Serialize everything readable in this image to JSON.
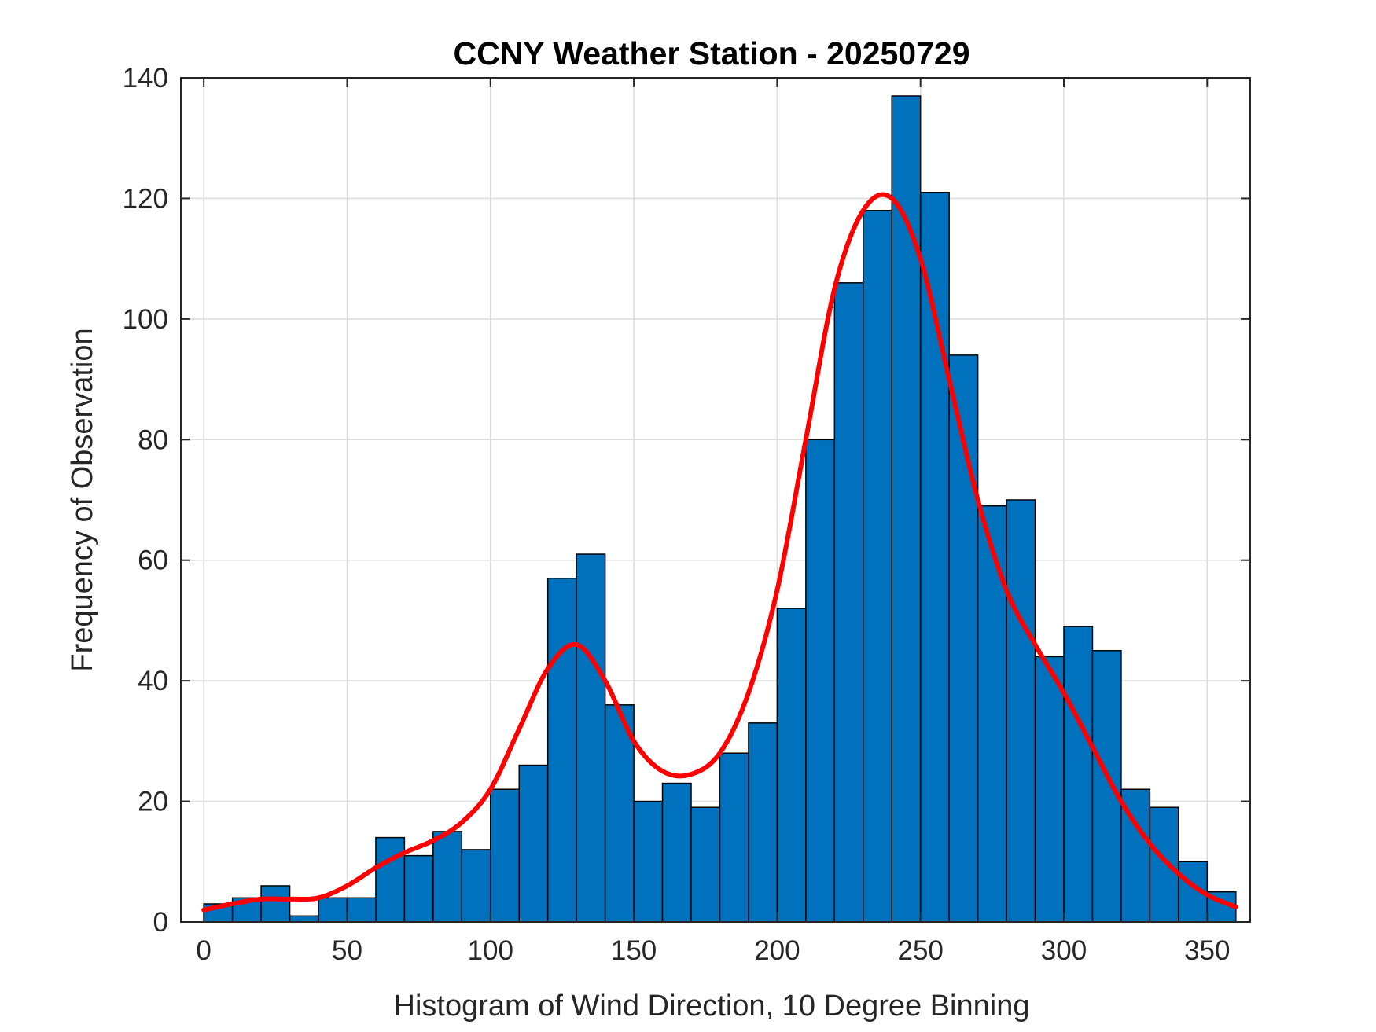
{
  "chart_data": {
    "type": "bar",
    "title": "CCNY Weather Station - 20250729",
    "xlabel": "Histogram of Wind Direction, 10 Degree Binning",
    "ylabel": "Frequency of Observation",
    "xlim": [
      -8,
      365
    ],
    "ylim": [
      0,
      140
    ],
    "xticks": [
      0,
      50,
      100,
      150,
      200,
      250,
      300,
      350
    ],
    "yticks": [
      0,
      20,
      40,
      60,
      80,
      100,
      120,
      140
    ],
    "grid": true,
    "bin_width": 10,
    "bin_edges": [
      0,
      10,
      20,
      30,
      40,
      50,
      60,
      70,
      80,
      90,
      100,
      110,
      120,
      130,
      140,
      150,
      160,
      170,
      180,
      190,
      200,
      210,
      220,
      230,
      240,
      250,
      260,
      270,
      280,
      290,
      300,
      310,
      320,
      330,
      340,
      350,
      360
    ],
    "values": [
      3,
      4,
      6,
      1,
      4,
      4,
      14,
      11,
      15,
      12,
      22,
      26,
      57,
      61,
      36,
      20,
      23,
      19,
      28,
      33,
      52,
      80,
      106,
      118,
      137,
      121,
      94,
      69,
      70,
      44,
      49,
      45,
      22,
      19,
      10,
      5
    ],
    "bar_color": "#0072BD",
    "fit_curve": {
      "color": "#FF0000",
      "x": [
        0,
        10,
        20,
        30,
        40,
        50,
        60,
        70,
        80,
        90,
        100,
        110,
        120,
        130,
        140,
        150,
        160,
        170,
        180,
        190,
        200,
        210,
        220,
        230,
        240,
        250,
        260,
        270,
        280,
        290,
        300,
        310,
        320,
        330,
        340,
        350,
        360
      ],
      "y": [
        2,
        3,
        3.8,
        3.8,
        4,
        6,
        9,
        11.5,
        13.5,
        16.5,
        22,
        32,
        42,
        46,
        40,
        30,
        25,
        24.5,
        28,
        38,
        55,
        80,
        105,
        118,
        120,
        110,
        90,
        70,
        55,
        46,
        38,
        29,
        20,
        13,
        8,
        4.5,
        2.5
      ]
    }
  }
}
